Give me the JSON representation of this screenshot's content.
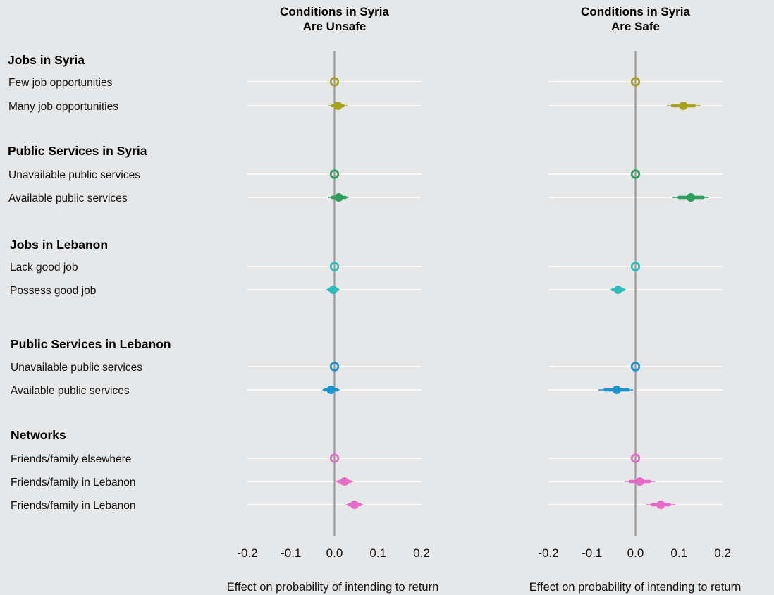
{
  "chart_data": {
    "type": "scatter",
    "style": "coefficient plot with confidence intervals",
    "colors": {
      "jobs_syria": "#a8a31a",
      "services_syria": "#2e9e5f",
      "jobs_lebanon": "#2dbdbd",
      "services_lebanon": "#1a93cf",
      "networks": "#e86ac8"
    },
    "xlim": [
      -0.2,
      0.2
    ],
    "xticks": [
      "-0.2",
      "-0.1",
      "0.0",
      "0.1",
      "0.2"
    ],
    "xlabel": "Effect on probability of intending to return",
    "grid": "horizontal row lines",
    "panels": [
      {
        "title_line1": "Conditions in Syria",
        "title_line2": "Are Unsafe",
        "points": [
          {
            "x": 0.0,
            "lo": 0.0,
            "hi": 0.0,
            "lo2": 0.0,
            "hi2": 0.0,
            "filled": false
          },
          {
            "x": 0.008,
            "lo": -0.005,
            "hi": 0.02,
            "lo2": -0.015,
            "hi2": 0.03,
            "filled": true
          },
          {
            "x": 0.0,
            "lo": 0.0,
            "hi": 0.0,
            "lo2": 0.0,
            "hi2": 0.0,
            "filled": false
          },
          {
            "x": 0.01,
            "lo": -0.005,
            "hi": 0.025,
            "lo2": -0.015,
            "hi2": 0.033,
            "filled": true
          },
          {
            "x": 0.0,
            "lo": 0.0,
            "hi": 0.0,
            "lo2": 0.0,
            "hi2": 0.0,
            "filled": false
          },
          {
            "x": -0.003,
            "lo": -0.013,
            "hi": 0.007,
            "lo2": -0.02,
            "hi2": 0.012,
            "filled": true
          },
          {
            "x": 0.0,
            "lo": 0.0,
            "hi": 0.0,
            "lo2": 0.0,
            "hi2": 0.0,
            "filled": false
          },
          {
            "x": -0.008,
            "lo": -0.022,
            "hi": 0.006,
            "lo2": -0.028,
            "hi2": 0.012,
            "filled": true
          },
          {
            "x": 0.0,
            "lo": 0.0,
            "hi": 0.0,
            "lo2": 0.0,
            "hi2": 0.0,
            "filled": false
          },
          {
            "x": 0.023,
            "lo": 0.01,
            "hi": 0.036,
            "lo2": 0.003,
            "hi2": 0.043,
            "filled": true
          },
          {
            "x": 0.046,
            "lo": 0.033,
            "hi": 0.059,
            "lo2": 0.026,
            "hi2": 0.066,
            "filled": true
          }
        ]
      },
      {
        "title_line1": "Conditions in Syria",
        "title_line2": "Are Safe",
        "points": [
          {
            "x": 0.0,
            "lo": 0.0,
            "hi": 0.0,
            "lo2": 0.0,
            "hi2": 0.0,
            "filled": false
          },
          {
            "x": 0.11,
            "lo": 0.085,
            "hi": 0.135,
            "lo2": 0.072,
            "hi2": 0.15,
            "filled": true
          },
          {
            "x": 0.0,
            "lo": 0.0,
            "hi": 0.0,
            "lo2": 0.0,
            "hi2": 0.0,
            "filled": false
          },
          {
            "x": 0.127,
            "lo": 0.1,
            "hi": 0.155,
            "lo2": 0.085,
            "hi2": 0.168,
            "filled": true
          },
          {
            "x": 0.0,
            "lo": 0.0,
            "hi": 0.0,
            "lo2": 0.0,
            "hi2": 0.0,
            "filled": false
          },
          {
            "x": -0.04,
            "lo": -0.052,
            "hi": -0.028,
            "lo2": -0.058,
            "hi2": -0.022,
            "filled": true
          },
          {
            "x": 0.0,
            "lo": 0.0,
            "hi": 0.0,
            "lo2": 0.0,
            "hi2": 0.0,
            "filled": false
          },
          {
            "x": -0.043,
            "lo": -0.07,
            "hi": -0.017,
            "lo2": -0.085,
            "hi2": -0.005,
            "filled": true
          },
          {
            "x": 0.0,
            "lo": 0.0,
            "hi": 0.0,
            "lo2": 0.0,
            "hi2": 0.0,
            "filled": false
          },
          {
            "x": 0.01,
            "lo": -0.012,
            "hi": 0.032,
            "lo2": -0.025,
            "hi2": 0.045,
            "filled": true
          },
          {
            "x": 0.058,
            "lo": 0.038,
            "hi": 0.078,
            "lo2": 0.025,
            "hi2": 0.092,
            "filled": true
          }
        ]
      }
    ],
    "groups": [
      {
        "key": "jobs_syria",
        "label": "Jobs in Syria",
        "rows": [
          "Few job opportunities",
          "Many job opportunities"
        ]
      },
      {
        "key": "services_syria",
        "label": "Public Services in Syria",
        "rows": [
          "Unavailable public services",
          "Available public services"
        ]
      },
      {
        "key": "jobs_lebanon",
        "label": "Jobs in Lebanon",
        "rows": [
          "Lack good job",
          "Possess good job"
        ]
      },
      {
        "key": "services_lebanon",
        "label": "Public Services in Lebanon",
        "rows": [
          "Unavailable public services",
          "Available public services"
        ]
      },
      {
        "key": "networks",
        "label": "Networks",
        "rows": [
          "Friends/family elsewhere",
          "Friends/family in Lebanon",
          "Friends/family in Lebanon"
        ]
      }
    ]
  }
}
